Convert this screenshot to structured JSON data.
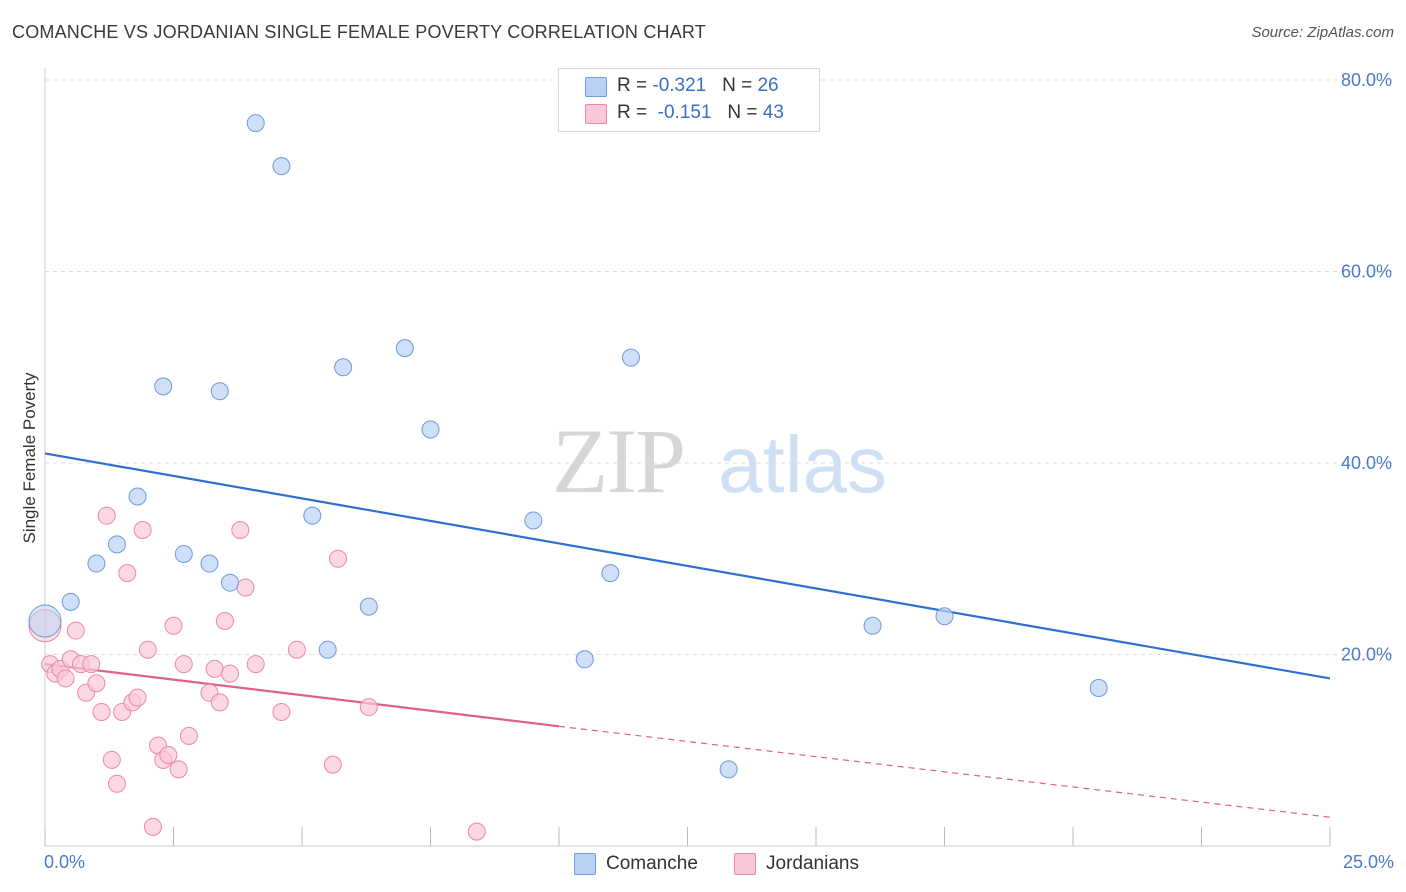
{
  "header": {
    "title": "COMANCHE VS JORDANIAN SINGLE FEMALE POVERTY CORRELATION CHART",
    "source": "Source: ZipAtlas.com"
  },
  "watermark": {
    "zip": "ZIP",
    "atlas": "atlas"
  },
  "legend_top": {
    "rows": [
      {
        "r_label": "R = ",
        "r_value": "-0.321",
        "n_label": "N = ",
        "n_value": "26"
      },
      {
        "r_label": "R = ",
        "r_value": "-0.151",
        "n_label": "N = ",
        "n_value": "43"
      }
    ]
  },
  "legend_bottom": {
    "items": [
      {
        "label": "Comanche"
      },
      {
        "label": "Jordanians"
      }
    ]
  },
  "colors": {
    "comanche_fill": "#b9d2f3",
    "comanche_stroke": "#6f9bd8",
    "comanche_line": "#2f6fd0",
    "jordanian_fill": "#f9c7d6",
    "jordanian_stroke": "#e88aa8",
    "jordanian_line": "#e0608c",
    "grid": "#dddddd",
    "tick_text": "#4a7cc8"
  },
  "chart_data": {
    "type": "scatter",
    "ylabel": "Single Female Poverty",
    "xlim": [
      0,
      25
    ],
    "ylim": [
      0,
      80
    ],
    "x_tick_labels": [
      "0.0%",
      "25.0%"
    ],
    "y_ticks": [
      20,
      40,
      60,
      80
    ],
    "y_tick_labels": [
      "20.0%",
      "40.0%",
      "60.0%",
      "80.0%"
    ],
    "grid": "horizontal dashed",
    "legend_position": "top-center",
    "series": [
      {
        "name": "Comanche",
        "points": [
          [
            0.0,
            23.5
          ],
          [
            0.5,
            25.5
          ],
          [
            1.0,
            29.5
          ],
          [
            1.4,
            31.5
          ],
          [
            1.8,
            36.5
          ],
          [
            2.3,
            48.0
          ],
          [
            2.7,
            30.5
          ],
          [
            3.2,
            29.5
          ],
          [
            3.4,
            47.5
          ],
          [
            3.6,
            27.5
          ],
          [
            4.1,
            75.5
          ],
          [
            4.6,
            71.0
          ],
          [
            5.2,
            34.5
          ],
          [
            5.5,
            20.5
          ],
          [
            5.8,
            50.0
          ],
          [
            6.3,
            25.0
          ],
          [
            7.0,
            52.0
          ],
          [
            7.5,
            43.5
          ],
          [
            9.5,
            34.0
          ],
          [
            10.5,
            19.5
          ],
          [
            11.0,
            28.5
          ],
          [
            11.4,
            51.0
          ],
          [
            13.3,
            8.0
          ],
          [
            16.1,
            23.0
          ],
          [
            17.5,
            24.0
          ],
          [
            20.5,
            16.5
          ]
        ],
        "trend": {
          "x": [
            0,
            25
          ],
          "y": [
            41.0,
            17.5
          ],
          "style": "solid"
        }
      },
      {
        "name": "Jordanians",
        "points": [
          [
            0.0,
            23.0
          ],
          [
            0.1,
            19.0
          ],
          [
            0.2,
            18.0
          ],
          [
            0.3,
            18.5
          ],
          [
            0.4,
            17.5
          ],
          [
            0.5,
            19.5
          ],
          [
            0.6,
            22.5
          ],
          [
            0.7,
            19.0
          ],
          [
            0.8,
            16.0
          ],
          [
            0.9,
            19.0
          ],
          [
            1.0,
            17.0
          ],
          [
            1.1,
            14.0
          ],
          [
            1.2,
            34.5
          ],
          [
            1.3,
            9.0
          ],
          [
            1.4,
            6.5
          ],
          [
            1.5,
            14.0
          ],
          [
            1.6,
            28.5
          ],
          [
            1.7,
            15.0
          ],
          [
            1.8,
            15.5
          ],
          [
            1.9,
            33.0
          ],
          [
            2.0,
            20.5
          ],
          [
            2.1,
            2.0
          ],
          [
            2.2,
            10.5
          ],
          [
            2.3,
            9.0
          ],
          [
            2.4,
            9.5
          ],
          [
            2.5,
            23.0
          ],
          [
            2.6,
            8.0
          ],
          [
            2.7,
            19.0
          ],
          [
            2.8,
            11.5
          ],
          [
            3.2,
            16.0
          ],
          [
            3.3,
            18.5
          ],
          [
            3.4,
            15.0
          ],
          [
            3.5,
            23.5
          ],
          [
            3.6,
            18.0
          ],
          [
            3.8,
            33.0
          ],
          [
            3.9,
            27.0
          ],
          [
            4.1,
            19.0
          ],
          [
            4.6,
            14.0
          ],
          [
            4.9,
            20.5
          ],
          [
            5.6,
            8.5
          ],
          [
            5.7,
            30.0
          ],
          [
            6.3,
            14.5
          ],
          [
            8.4,
            1.5
          ]
        ],
        "trend": {
          "x": [
            0,
            10
          ],
          "y": [
            19.0,
            12.5
          ],
          "style": "solid",
          "extension": {
            "x": [
              10,
              25
            ],
            "y": [
              12.5,
              3.0
            ],
            "style": "dashed"
          }
        }
      }
    ]
  }
}
